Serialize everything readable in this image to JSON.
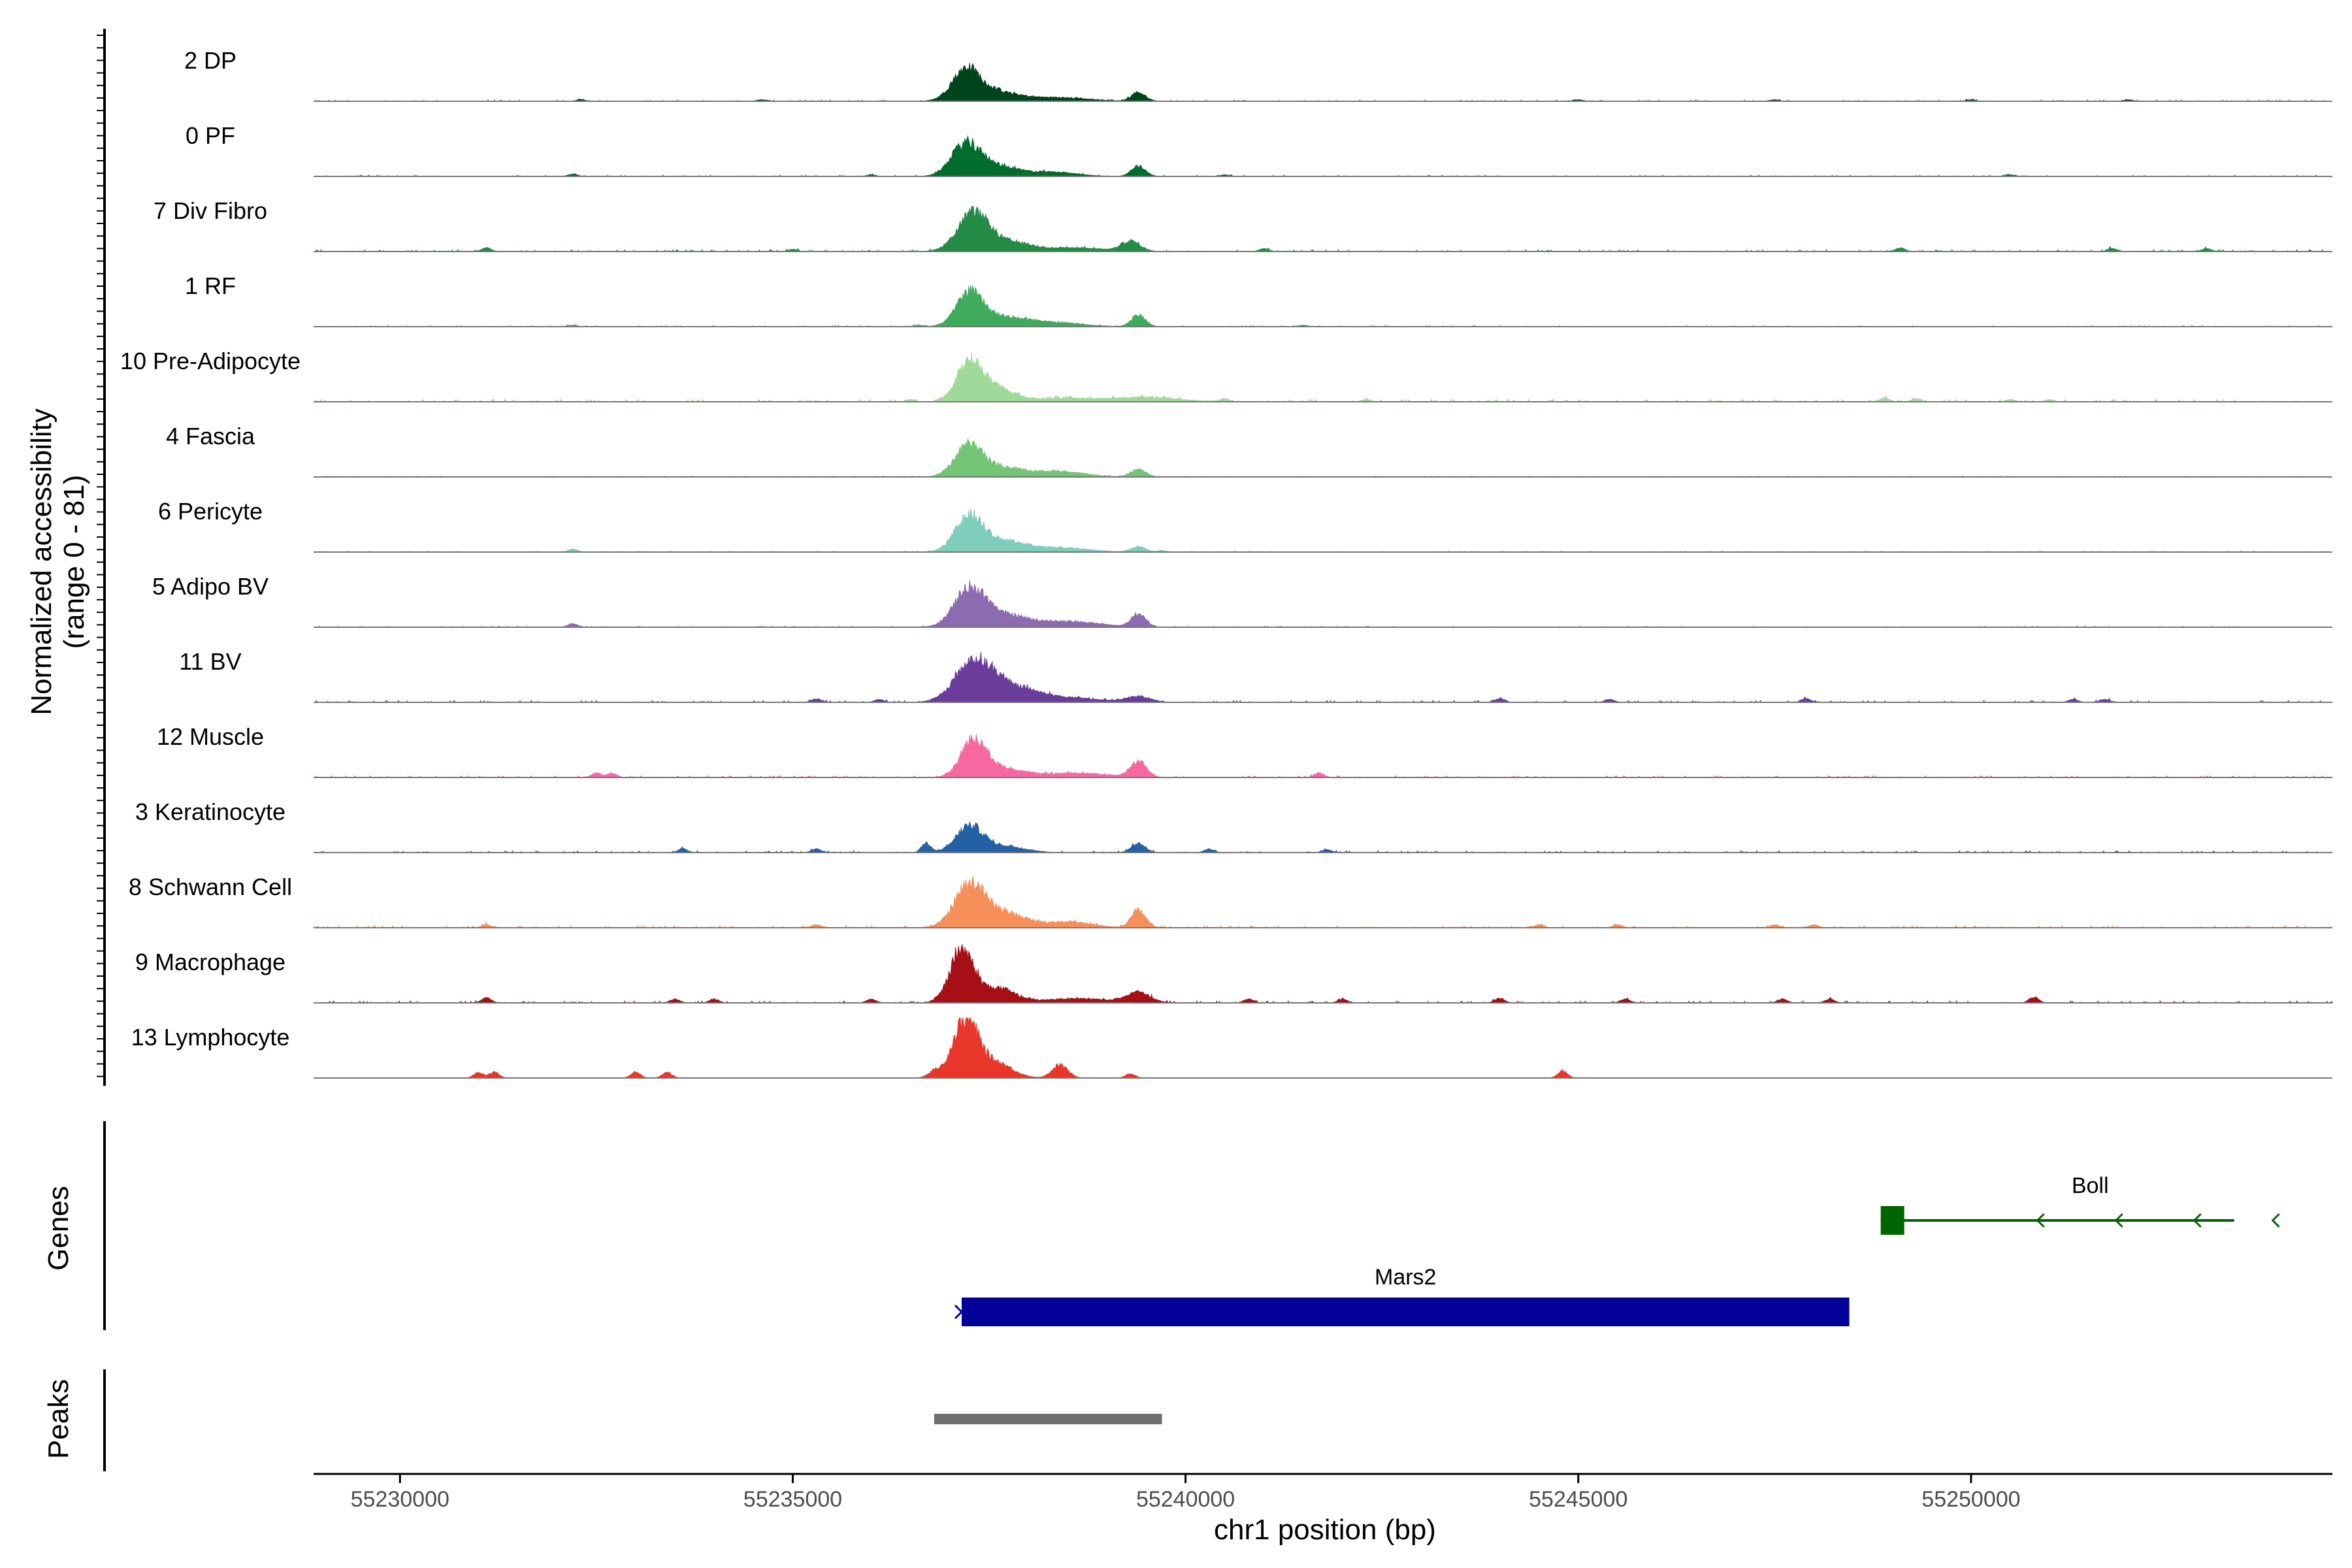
{
  "chart_data": {
    "type": "area",
    "title": "",
    "xlabel": "chr1 position (bp)",
    "ylabel_line1": "Normalized accessibility",
    "ylabel_line2": "(range 0 - 81)",
    "yrange": [
      0,
      81
    ],
    "xlim": [
      55228900,
      55254600
    ],
    "xticks": [
      55230000,
      55235000,
      55240000,
      55245000,
      55250000
    ],
    "xtick_labels": [
      "55230000",
      "55235000",
      "55240000",
      "55245000",
      "55250000"
    ],
    "genes_label": "Genes",
    "peaks_label": "Peaks",
    "series": [
      {
        "name": "2 DP",
        "color": "#00441b",
        "peaks": [
          [
            55237200,
            40,
            170
          ],
          [
            55237550,
            14,
            300
          ],
          [
            55238400,
            5,
            350
          ],
          [
            55239400,
            12,
            90
          ]
        ],
        "noise": 1.5,
        "bumps": [
          [
            55232300,
            2
          ],
          [
            55234600,
            2
          ],
          [
            55245000,
            2
          ],
          [
            55247500,
            2
          ],
          [
            55250000,
            2
          ],
          [
            55252000,
            2
          ]
        ]
      },
      {
        "name": "0 PF",
        "color": "#006d2c",
        "peaks": [
          [
            55237200,
            43,
            180
          ],
          [
            55237600,
            14,
            250
          ],
          [
            55238300,
            6,
            300
          ],
          [
            55239400,
            14,
            90
          ]
        ],
        "noise": 1.5,
        "bumps": [
          [
            55232200,
            3
          ],
          [
            55236000,
            2
          ],
          [
            55240500,
            2
          ],
          [
            55250500,
            2
          ]
        ]
      },
      {
        "name": "7 Div Fibro",
        "color": "#238b45",
        "peaks": [
          [
            55237300,
            52,
            200
          ],
          [
            55237800,
            12,
            250
          ],
          [
            55238600,
            5,
            350
          ],
          [
            55239300,
            14,
            120
          ]
        ],
        "noise": 2.5,
        "bumps": [
          [
            55231100,
            5
          ],
          [
            55235000,
            3
          ],
          [
            55241000,
            4
          ],
          [
            55249100,
            5
          ],
          [
            55251800,
            4
          ],
          [
            55253000,
            4
          ]
        ]
      },
      {
        "name": "1 RF",
        "color": "#41ab5d",
        "peaks": [
          [
            55237250,
            46,
            170
          ],
          [
            55237700,
            12,
            250
          ],
          [
            55238300,
            6,
            350
          ],
          [
            55239400,
            16,
            90
          ]
        ],
        "noise": 1.5,
        "bumps": [
          [
            55232200,
            2
          ],
          [
            55236600,
            2
          ],
          [
            55241500,
            2
          ]
        ]
      },
      {
        "name": "10 Pre-Adipocyte",
        "color": "#a1d99b",
        "peaks": [
          [
            55237250,
            55,
            160
          ],
          [
            55237600,
            18,
            200
          ],
          [
            55238400,
            5,
            450
          ],
          [
            55239500,
            6,
            400
          ]
        ],
        "noise": 3.5,
        "bumps": [
          [
            55236500,
            3
          ],
          [
            55240500,
            4
          ],
          [
            55242300,
            3
          ],
          [
            55248900,
            5
          ],
          [
            55249300,
            4
          ],
          [
            55250500,
            3
          ],
          [
            55251000,
            3
          ]
        ]
      },
      {
        "name": "4 Fascia",
        "color": "#74c476",
        "peaks": [
          [
            55237250,
            43,
            180
          ],
          [
            55237700,
            12,
            250
          ],
          [
            55238400,
            8,
            300
          ],
          [
            55239400,
            10,
            100
          ]
        ],
        "noise": 1.5,
        "bumps": []
      },
      {
        "name": "6 Pericyte",
        "color": "#7fcdbb",
        "peaks": [
          [
            55237250,
            48,
            180
          ],
          [
            55237700,
            14,
            260
          ],
          [
            55238400,
            6,
            350
          ],
          [
            55239400,
            8,
            90
          ]
        ],
        "noise": 1.5,
        "bumps": [
          [
            55232200,
            4
          ],
          [
            55239700,
            2
          ]
        ]
      },
      {
        "name": "5 Adipo BV",
        "color": "#8c6bb1",
        "peaks": [
          [
            55237250,
            52,
            190
          ],
          [
            55237700,
            16,
            270
          ],
          [
            55238500,
            8,
            400
          ],
          [
            55239400,
            18,
            90
          ]
        ],
        "noise": 1.5,
        "bumps": [
          [
            55232200,
            5
          ]
        ]
      },
      {
        "name": "11 BV",
        "color": "#6a3d9a",
        "peaks": [
          [
            55237300,
            56,
            230
          ],
          [
            55237800,
            20,
            300
          ],
          [
            55238500,
            6,
            400
          ],
          [
            55239400,
            8,
            150
          ]
        ],
        "noise": 2.5,
        "bumps": [
          [
            55235300,
            5
          ],
          [
            55236100,
            4
          ],
          [
            55244000,
            5
          ],
          [
            55245400,
            4
          ],
          [
            55247900,
            5
          ],
          [
            55251300,
            4
          ],
          [
            55251700,
            4
          ]
        ]
      },
      {
        "name": "12 Muscle",
        "color": "#f768a1",
        "peaks": [
          [
            55237300,
            50,
            160
          ],
          [
            55237700,
            12,
            250
          ],
          [
            55238600,
            6,
            400
          ],
          [
            55239400,
            22,
            100
          ]
        ],
        "noise": 2.5,
        "bumps": [
          [
            55232500,
            6
          ],
          [
            55232700,
            6
          ],
          [
            55241700,
            6
          ]
        ]
      },
      {
        "name": "3 Keratinocyte",
        "color": "#2361a6",
        "peaks": [
          [
            55237250,
            36,
            170
          ],
          [
            55237700,
            9,
            250
          ],
          [
            55239400,
            12,
            90
          ]
        ],
        "noise": 2.5,
        "bumps": [
          [
            55233600,
            5
          ],
          [
            55235300,
            5
          ],
          [
            55236700,
            12
          ],
          [
            55240300,
            5
          ],
          [
            55241800,
            4
          ]
        ]
      },
      {
        "name": "8 Schwann Cell",
        "color": "#f78f5a",
        "peaks": [
          [
            55237250,
            58,
            190
          ],
          [
            55237700,
            20,
            260
          ],
          [
            55238500,
            8,
            300
          ],
          [
            55239400,
            24,
            90
          ]
        ],
        "noise": 2.5,
        "bumps": [
          [
            55231100,
            4
          ],
          [
            55235300,
            4
          ],
          [
            55244500,
            4
          ],
          [
            55245500,
            4
          ],
          [
            55247500,
            4
          ],
          [
            55248000,
            4
          ]
        ]
      },
      {
        "name": "9 Macrophage",
        "color": "#a50f15",
        "peaks": [
          [
            55237150,
            72,
            150
          ],
          [
            55237600,
            20,
            220
          ],
          [
            55238600,
            6,
            400
          ],
          [
            55239400,
            14,
            150
          ]
        ],
        "noise": 2.5,
        "bumps": [
          [
            55231100,
            7
          ],
          [
            55233500,
            5
          ],
          [
            55234000,
            5
          ],
          [
            55236000,
            5
          ],
          [
            55240800,
            5
          ],
          [
            55242000,
            5
          ],
          [
            55244000,
            6
          ],
          [
            55245600,
            5
          ],
          [
            55247600,
            5
          ],
          [
            55248200,
            5
          ],
          [
            55250800,
            8
          ]
        ]
      },
      {
        "name": "13 Lymphocyte",
        "color": "#e8362a",
        "peaks": [
          [
            55237200,
            81,
            160
          ],
          [
            55237600,
            20,
            200
          ],
          [
            55238400,
            18,
            100
          ],
          [
            55236800,
            8,
            80
          ],
          [
            55239300,
            6,
            60
          ]
        ],
        "noise": 0,
        "bumps": [
          [
            55231000,
            8
          ],
          [
            55231200,
            8
          ],
          [
            55233000,
            8
          ],
          [
            55233400,
            8
          ],
          [
            55244800,
            10
          ]
        ]
      }
    ],
    "genes": [
      {
        "name": "Mars2",
        "start": 55237150,
        "end": 55248450,
        "strand": "+",
        "color": "#000099"
      },
      {
        "name": "Boll",
        "start": 55248850,
        "end": 55253350,
        "strand": "-",
        "color": "#006400"
      }
    ],
    "peak_regions": [
      {
        "start": 55236800,
        "end": 55239700,
        "color": "#707070"
      }
    ]
  }
}
